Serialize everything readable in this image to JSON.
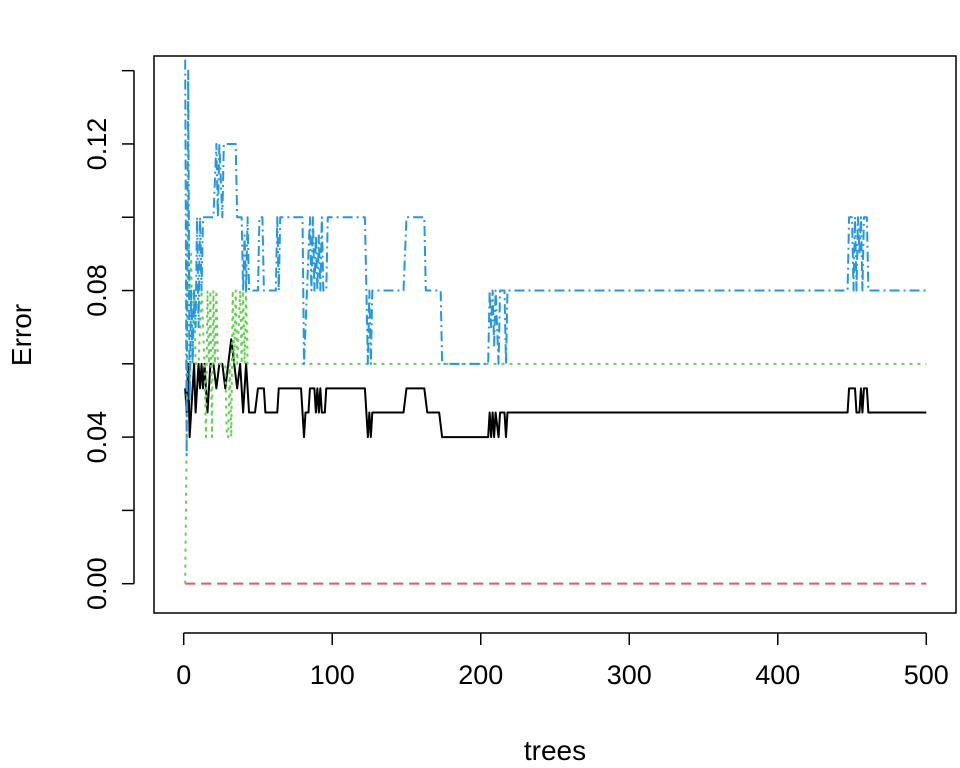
{
  "chart_data": {
    "type": "line",
    "title": "",
    "xlabel": "trees",
    "ylabel": "Error",
    "xlim": [
      -20,
      520
    ],
    "ylim": [
      -0.008,
      0.144
    ],
    "xticks": [
      0,
      100,
      200,
      300,
      400,
      500
    ],
    "xtick_labels": [
      "0",
      "100",
      "200",
      "300",
      "400",
      "500"
    ],
    "yticks": [
      0.0,
      0.02,
      0.04,
      0.06,
      0.08,
      0.1,
      0.12,
      0.14
    ],
    "ytick_labels": [
      "0.00",
      "",
      "0.04",
      "",
      "0.08",
      "",
      "0.12",
      ""
    ],
    "grid": false,
    "legend": "none",
    "series": [
      {
        "color": "#000000",
        "dash": "",
        "points": [
          [
            1,
            0.0533
          ],
          [
            2,
            0.0467
          ],
          [
            3,
            0.06
          ],
          [
            4,
            0.04
          ],
          [
            5,
            0.0467
          ],
          [
            6,
            0.0533
          ],
          [
            7,
            0.06
          ],
          [
            8,
            0.0467
          ],
          [
            9,
            0.0533
          ],
          [
            10,
            0.06
          ],
          [
            11,
            0.0533
          ],
          [
            12,
            0.06
          ],
          [
            13,
            0.0533
          ],
          [
            14,
            0.06
          ],
          [
            15,
            0.0533
          ],
          [
            16,
            0.0467
          ],
          [
            17,
            0.0533
          ],
          [
            18,
            0.06
          ],
          [
            20,
            0.06
          ],
          [
            22,
            0.0533
          ],
          [
            24,
            0.06
          ],
          [
            26,
            0.06
          ],
          [
            28,
            0.0533
          ],
          [
            30,
            0.06
          ],
          [
            32,
            0.0667
          ],
          [
            34,
            0.06
          ],
          [
            36,
            0.0533
          ],
          [
            38,
            0.06
          ],
          [
            40,
            0.0467
          ],
          [
            42,
            0.06
          ],
          [
            44,
            0.0467
          ],
          [
            48,
            0.0467
          ],
          [
            50,
            0.0533
          ],
          [
            54,
            0.0533
          ],
          [
            55,
            0.0467
          ],
          [
            63,
            0.0467
          ],
          [
            64,
            0.0533
          ],
          [
            79,
            0.0533
          ],
          [
            80,
            0.0467
          ],
          [
            81,
            0.04
          ],
          [
            82,
            0.0467
          ],
          [
            84,
            0.0467
          ],
          [
            85,
            0.0533
          ],
          [
            88,
            0.0533
          ],
          [
            89,
            0.0467
          ],
          [
            90,
            0.0533
          ],
          [
            91,
            0.0467
          ],
          [
            92,
            0.0533
          ],
          [
            93,
            0.0467
          ],
          [
            95,
            0.0467
          ],
          [
            96,
            0.0533
          ],
          [
            122,
            0.0533
          ],
          [
            123,
            0.0467
          ],
          [
            124,
            0.04
          ],
          [
            125,
            0.0467
          ],
          [
            126,
            0.04
          ],
          [
            127,
            0.0467
          ],
          [
            148,
            0.0467
          ],
          [
            150,
            0.0533
          ],
          [
            162,
            0.0533
          ],
          [
            164,
            0.0467
          ],
          [
            172,
            0.0467
          ],
          [
            174,
            0.04
          ],
          [
            205,
            0.04
          ],
          [
            206,
            0.0467
          ],
          [
            207,
            0.04
          ],
          [
            208,
            0.0467
          ],
          [
            209,
            0.04
          ],
          [
            210,
            0.0467
          ],
          [
            212,
            0.04
          ],
          [
            213,
            0.0467
          ],
          [
            216,
            0.0467
          ],
          [
            217,
            0.04
          ],
          [
            218,
            0.0467
          ],
          [
            447,
            0.0467
          ],
          [
            448,
            0.0533
          ],
          [
            452,
            0.0533
          ],
          [
            453,
            0.0467
          ],
          [
            455,
            0.0467
          ],
          [
            456,
            0.0533
          ],
          [
            457,
            0.0467
          ],
          [
            458,
            0.0533
          ],
          [
            460,
            0.0533
          ],
          [
            461,
            0.0467
          ],
          [
            500,
            0.0467
          ]
        ]
      },
      {
        "color": "#df536b",
        "dash": "10 6",
        "points": [
          [
            1,
            0.0
          ],
          [
            500,
            0.0
          ]
        ]
      },
      {
        "color": "#61d04f",
        "dash": "3 5",
        "points": [
          [
            1,
            0.0
          ],
          [
            2,
            0.04
          ],
          [
            3,
            0.105
          ],
          [
            4,
            0.08
          ],
          [
            5,
            0.09
          ],
          [
            6,
            0.06
          ],
          [
            7,
            0.08
          ],
          [
            8,
            0.06
          ],
          [
            10,
            0.06
          ],
          [
            12,
            0.08
          ],
          [
            14,
            0.06
          ],
          [
            15,
            0.04
          ],
          [
            16,
            0.08
          ],
          [
            17,
            0.06
          ],
          [
            18,
            0.08
          ],
          [
            19,
            0.04
          ],
          [
            20,
            0.08
          ],
          [
            21,
            0.06
          ],
          [
            22,
            0.08
          ],
          [
            23,
            0.06
          ],
          [
            28,
            0.06
          ],
          [
            29,
            0.04
          ],
          [
            30,
            0.04
          ],
          [
            31,
            0.06
          ],
          [
            32,
            0.04
          ],
          [
            33,
            0.08
          ],
          [
            34,
            0.06
          ],
          [
            35,
            0.08
          ],
          [
            36,
            0.06
          ],
          [
            38,
            0.08
          ],
          [
            39,
            0.06
          ],
          [
            40,
            0.08
          ],
          [
            41,
            0.06
          ],
          [
            42,
            0.08
          ],
          [
            43,
            0.06
          ],
          [
            500,
            0.06
          ]
        ]
      },
      {
        "color": "#2297e6",
        "dash": "10 4 2 4",
        "points": [
          [
            1,
            0.143
          ],
          [
            2,
            0.035
          ],
          [
            3,
            0.14
          ],
          [
            4,
            0.05
          ],
          [
            5,
            0.08
          ],
          [
            6,
            0.06
          ],
          [
            7,
            0.08
          ],
          [
            8,
            0.07
          ],
          [
            9,
            0.1
          ],
          [
            10,
            0.07
          ],
          [
            11,
            0.1
          ],
          [
            12,
            0.08
          ],
          [
            13,
            0.1
          ],
          [
            20,
            0.1
          ],
          [
            21,
            0.11
          ],
          [
            22,
            0.12
          ],
          [
            23,
            0.1
          ],
          [
            24,
            0.12
          ],
          [
            25,
            0.11
          ],
          [
            26,
            0.1
          ],
          [
            27,
            0.12
          ],
          [
            35,
            0.12
          ],
          [
            36,
            0.1
          ],
          [
            39,
            0.1
          ],
          [
            40,
            0.08
          ],
          [
            41,
            0.095
          ],
          [
            42,
            0.08
          ],
          [
            43,
            0.1
          ],
          [
            44,
            0.08
          ],
          [
            50,
            0.08
          ],
          [
            51,
            0.1
          ],
          [
            53,
            0.1
          ],
          [
            54,
            0.08
          ],
          [
            62,
            0.08
          ],
          [
            63,
            0.1
          ],
          [
            64,
            0.08
          ],
          [
            65,
            0.1
          ],
          [
            80,
            0.1
          ],
          [
            81,
            0.06
          ],
          [
            83,
            0.08
          ],
          [
            85,
            0.1
          ],
          [
            86,
            0.08
          ],
          [
            87,
            0.1
          ],
          [
            88,
            0.08
          ],
          [
            89,
            0.095
          ],
          [
            90,
            0.08
          ],
          [
            91,
            0.095
          ],
          [
            92,
            0.08
          ],
          [
            93,
            0.1
          ],
          [
            94,
            0.08
          ],
          [
            96,
            0.08
          ],
          [
            97,
            0.1
          ],
          [
            122,
            0.1
          ],
          [
            123,
            0.08
          ],
          [
            124,
            0.06
          ],
          [
            125,
            0.08
          ],
          [
            126,
            0.06
          ],
          [
            127,
            0.08
          ],
          [
            148,
            0.08
          ],
          [
            150,
            0.1
          ],
          [
            162,
            0.1
          ],
          [
            163,
            0.08
          ],
          [
            173,
            0.08
          ],
          [
            174,
            0.06
          ],
          [
            205,
            0.06
          ],
          [
            206,
            0.08
          ],
          [
            207,
            0.07
          ],
          [
            208,
            0.08
          ],
          [
            209,
            0.065
          ],
          [
            210,
            0.08
          ],
          [
            211,
            0.07
          ],
          [
            212,
            0.06
          ],
          [
            213,
            0.08
          ],
          [
            216,
            0.08
          ],
          [
            217,
            0.06
          ],
          [
            218,
            0.08
          ],
          [
            447,
            0.08
          ],
          [
            448,
            0.1
          ],
          [
            450,
            0.1
          ],
          [
            451,
            0.08
          ],
          [
            452,
            0.1
          ],
          [
            453,
            0.08
          ],
          [
            454,
            0.1
          ],
          [
            455,
            0.09
          ],
          [
            456,
            0.1
          ],
          [
            457,
            0.08
          ],
          [
            458,
            0.1
          ],
          [
            460,
            0.1
          ],
          [
            461,
            0.08
          ],
          [
            500,
            0.08
          ]
        ]
      }
    ]
  }
}
